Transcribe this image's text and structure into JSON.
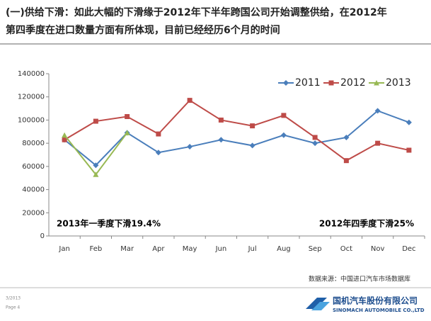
{
  "slide": {
    "title_lines": [
      "(一)供给下滑：如此大幅的下滑缘于2012年下半年跨国公司开始调整供给，在2012年",
      "第四季度在进口数量方面有所体现，目前已经经历6个月的时间"
    ],
    "source": "数据来源：中国进口汽车市场数据库",
    "date": "3/2013",
    "page": "Page 4",
    "company_cn": "国机汽车股份有限公司",
    "company_en": "SINOMACH AUTOMOBILE CO.,LTD"
  },
  "chart_data": {
    "type": "line",
    "categories": [
      "Jan",
      "Feb",
      "Mar",
      "Apr",
      "May",
      "Jun",
      "Jul",
      "Aug",
      "Sep",
      "Oct",
      "Nov",
      "Dec"
    ],
    "series": [
      {
        "name": "2011",
        "color": "#4a7ebb",
        "marker": "diamond",
        "values": [
          83000,
          61000,
          89000,
          72000,
          77000,
          83000,
          78000,
          87000,
          80000,
          85000,
          108000,
          98000
        ]
      },
      {
        "name": "2012",
        "color": "#be4b48",
        "marker": "square",
        "values": [
          83000,
          99000,
          103000,
          88000,
          117000,
          100000,
          95000,
          104000,
          85000,
          65000,
          80000,
          74000
        ]
      },
      {
        "name": "2013",
        "color": "#98b954",
        "marker": "triangle",
        "values": [
          87000,
          53000,
          89000,
          null,
          null,
          null,
          null,
          null,
          null,
          null,
          null,
          null
        ]
      }
    ],
    "ylim": [
      0,
      140000
    ],
    "yticks": [
      0,
      20000,
      40000,
      60000,
      80000,
      100000,
      120000,
      140000
    ],
    "grid": false,
    "legend": "top-right",
    "annotations": [
      "2013年一季度下滑19.4%",
      "2012年四季度下滑25%"
    ]
  }
}
